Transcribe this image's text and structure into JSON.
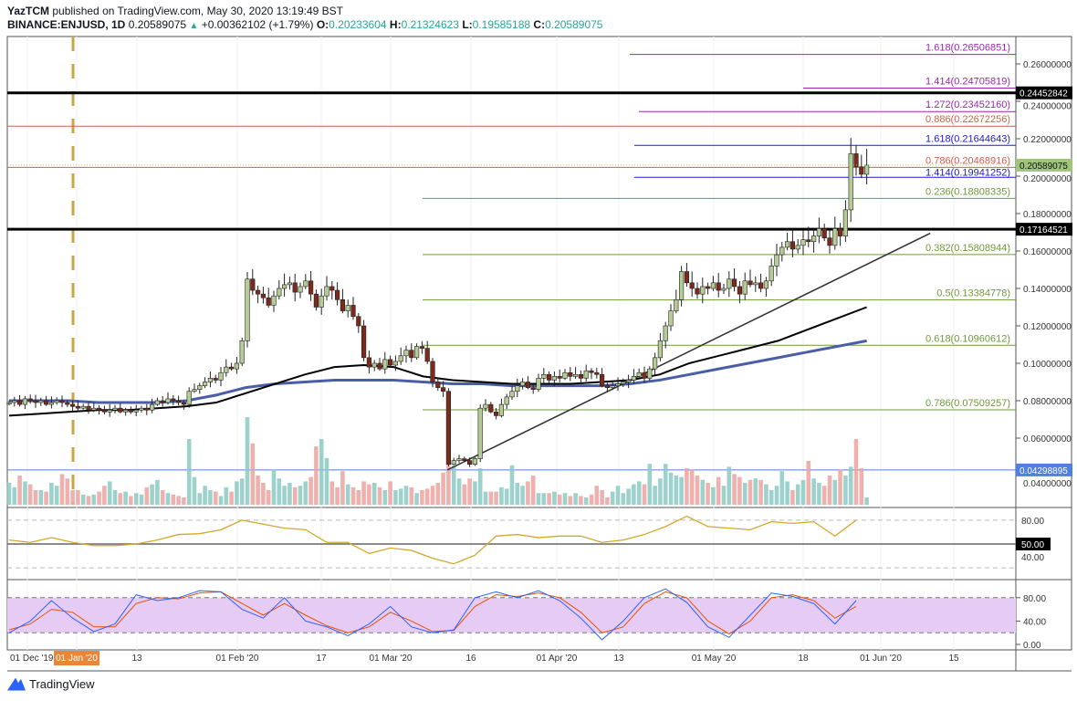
{
  "header": {
    "author": "YazTCM",
    "published": "published on TradingView.com, May 30, 2020 13:19:49 BST",
    "symbol": "BINANCE:ENJUSD, 1D",
    "last": "0.20589075",
    "change": "+0.00362102 (+1.79%)",
    "o_label": "O:",
    "o": "0.20233604",
    "h_label": "H:",
    "h": "0.21324623",
    "l_label": "L:",
    "l": "0.19585188",
    "c_label": "C:",
    "c": "0.20589075"
  },
  "footer": {
    "brand": "TradingView"
  },
  "colors": {
    "up": "#b5cc94",
    "down": "#7b2a1c",
    "ma_black": "#000000",
    "ma_blue": "#4a5ea8",
    "rsi": "#d4a72c",
    "stoch_k": "#2962ff",
    "stoch_d": "#e65100",
    "fib_ext": "#9c27b0",
    "fib_red": "#d0604a",
    "fib_blue": "#1a1ad0",
    "fib_green": "#6f9a3a"
  },
  "chart_data": {
    "type": "candlestick",
    "title": "",
    "price_axis": {
      "ylim": [
        0.03,
        0.27
      ],
      "ticks": [
        "0.26000000",
        "0.24000000",
        "0.22000000",
        "0.20000000",
        "0.18000000",
        "0.16000000",
        "0.14000000",
        "0.12000000",
        "0.10000000",
        "0.08000000",
        "0.06000000",
        "0.04000000"
      ]
    },
    "time_axis": {
      "ticks": [
        {
          "label": "01 Dec '19",
          "highlight": false
        },
        {
          "label": "01 Jan '20",
          "highlight": true
        },
        {
          "label": "13",
          "highlight": false
        },
        {
          "label": "01 Feb '20",
          "highlight": false
        },
        {
          "label": "17",
          "highlight": false
        },
        {
          "label": "01 Mar '20",
          "highlight": false
        },
        {
          "label": "16",
          "highlight": false
        },
        {
          "label": "01 Apr '20",
          "highlight": false
        },
        {
          "label": "13",
          "highlight": false
        },
        {
          "label": "01 May '20",
          "highlight": false
        },
        {
          "label": "18",
          "highlight": false
        },
        {
          "label": "01 Jun '20",
          "highlight": false
        },
        {
          "label": "15",
          "highlight": false
        }
      ]
    },
    "closes": [
      0.079,
      0.08,
      0.078,
      0.081,
      0.08,
      0.079,
      0.08,
      0.078,
      0.079,
      0.08,
      0.079,
      0.078,
      0.077,
      0.076,
      0.077,
      0.075,
      0.076,
      0.075,
      0.074,
      0.075,
      0.076,
      0.074,
      0.075,
      0.074,
      0.075,
      0.076,
      0.075,
      0.078,
      0.08,
      0.079,
      0.081,
      0.08,
      0.079,
      0.078,
      0.085,
      0.086,
      0.088,
      0.09,
      0.092,
      0.091,
      0.095,
      0.098,
      0.097,
      0.1,
      0.112,
      0.145,
      0.139,
      0.137,
      0.135,
      0.131,
      0.136,
      0.14,
      0.142,
      0.143,
      0.138,
      0.141,
      0.144,
      0.137,
      0.13,
      0.136,
      0.141,
      0.139,
      0.134,
      0.128,
      0.131,
      0.125,
      0.12,
      0.103,
      0.098,
      0.1,
      0.097,
      0.102,
      0.099,
      0.101,
      0.104,
      0.107,
      0.103,
      0.109,
      0.108,
      0.101,
      0.09,
      0.087,
      0.085,
      0.046,
      0.048,
      0.049,
      0.048,
      0.046,
      0.049,
      0.076,
      0.078,
      0.074,
      0.072,
      0.078,
      0.082,
      0.085,
      0.088,
      0.09,
      0.087,
      0.086,
      0.092,
      0.094,
      0.091,
      0.093,
      0.092,
      0.095,
      0.093,
      0.094,
      0.092,
      0.096,
      0.095,
      0.094,
      0.088,
      0.087,
      0.088,
      0.089,
      0.09,
      0.091,
      0.093,
      0.095,
      0.092,
      0.097,
      0.103,
      0.112,
      0.12,
      0.128,
      0.134,
      0.149,
      0.143,
      0.14,
      0.137,
      0.141,
      0.14,
      0.143,
      0.139,
      0.14,
      0.145,
      0.141,
      0.137,
      0.144,
      0.142,
      0.143,
      0.14,
      0.144,
      0.152,
      0.158,
      0.162,
      0.165,
      0.161,
      0.163,
      0.166,
      0.165,
      0.168,
      0.172,
      0.167,
      0.163,
      0.172,
      0.168,
      0.182,
      0.212,
      0.205,
      0.201,
      0.20589075
    ],
    "volumes": [
      1.5,
      1.2,
      2.0,
      1.6,
      1.4,
      1.0,
      1.0,
      0.9,
      1.5,
      1.3,
      2.1,
      1.8,
      1.0,
      1.0,
      0.7,
      0.6,
      0.7,
      0.9,
      1.3,
      1.6,
      1.0,
      0.8,
      0.9,
      0.6,
      0.8,
      0.7,
      1.2,
      1.4,
      1.7,
      1.0,
      0.8,
      0.7,
      0.6,
      0.5,
      4.5,
      1.9,
      0.8,
      1.3,
      1.0,
      0.9,
      0.6,
      1.2,
      0.9,
      1.6,
      1.8,
      6.0,
      4.2,
      2.0,
      1.5,
      1.0,
      2.4,
      1.8,
      1.3,
      1.5,
      1.2,
      1.3,
      1.6,
      1.9,
      4.0,
      4.5,
      3.2,
      1.6,
      1.2,
      2.3,
      1.4,
      1.2,
      1.0,
      1.6,
      1.4,
      1.5,
      1.2,
      1.0,
      1.6,
      1.0,
      1.1,
      1.3,
      1.2,
      0.8,
      1.0,
      1.1,
      1.3,
      1.5,
      2.2,
      4.5,
      2.7,
      1.8,
      1.4,
      1.8,
      1.6,
      2.5,
      0.9,
      0.9,
      0.9,
      1.2,
      1.1,
      2.7,
      1.5,
      1.3,
      1.6,
      2.0,
      0.8,
      0.8,
      0.8,
      0.9,
      0.7,
      0.8,
      0.6,
      0.8,
      0.6,
      0.5,
      0.7,
      1.3,
      1.0,
      0.5,
      0.9,
      1.3,
      0.8,
      1.1,
      1.4,
      1.6,
      1.4,
      2.8,
      1.3,
      1.8,
      2.8,
      2.2,
      2.0,
      1.9,
      2.5,
      2.4,
      2.0,
      1.7,
      1.5,
      1.2,
      1.9,
      1.3,
      2.6,
      2.1,
      1.9,
      1.5,
      1.7,
      1.8,
      1.7,
      1.4,
      1.0,
      1.3,
      2.3,
      1.6,
      1.0,
      1.4,
      1.7,
      3.0,
      1.8,
      1.5,
      1.3,
      2.0,
      1.7,
      2.4,
      2.0,
      2.6,
      4.5,
      2.5,
      0.5
    ],
    "ma_black": [
      0.072,
      0.073,
      0.074,
      0.075,
      0.075,
      0.076,
      0.077,
      0.079,
      0.084,
      0.089,
      0.094,
      0.098,
      0.099,
      0.098,
      0.093,
      0.091,
      0.09,
      0.089,
      0.089,
      0.089,
      0.09,
      0.091,
      0.094,
      0.1,
      0.104,
      0.108,
      0.112,
      0.118,
      0.124,
      0.13
    ],
    "ma_blue": [
      0.08,
      0.08,
      0.08,
      0.079,
      0.079,
      0.079,
      0.08,
      0.083,
      0.087,
      0.089,
      0.09,
      0.091,
      0.091,
      0.091,
      0.09,
      0.089,
      0.089,
      0.088,
      0.088,
      0.088,
      0.088,
      0.089,
      0.091,
      0.094,
      0.097,
      0.1,
      0.103,
      0.106,
      0.109,
      0.112
    ],
    "horizontal_levels": [
      {
        "price": "0.24452842",
        "style": "black"
      },
      {
        "price": "0.17164521",
        "style": "black"
      },
      {
        "price": "0.04298895",
        "style": "blue"
      }
    ],
    "last_price": "0.20589075",
    "fib_levels": [
      {
        "label": "1.618(0.26506851)",
        "price": 0.26506851,
        "group": "ext"
      },
      {
        "label": "1.414(0.24705819)",
        "price": 0.24705819,
        "group": "ext"
      },
      {
        "label": "1.272(0.23452160)",
        "price": 0.2345216,
        "group": "ext"
      },
      {
        "label": "0.886(0.22672256)",
        "price": 0.22672256,
        "group": "red"
      },
      {
        "label": "1.618(0.21644643)",
        "price": 0.21644643,
        "group": "blue"
      },
      {
        "label": "0.786(0.20468916)",
        "price": 0.20468916,
        "group": "red"
      },
      {
        "label": "1.414(0.19941252)",
        "price": 0.19941252,
        "group": "blue"
      },
      {
        "label": "0.236(0.18808335)",
        "price": 0.18808335,
        "group": "green"
      },
      {
        "label": "0.382(0.15808944)",
        "price": 0.15808944,
        "group": "green"
      },
      {
        "label": "0.5(0.13384778)",
        "price": 0.13384778,
        "group": "green"
      },
      {
        "label": "0.618(0.10960612)",
        "price": 0.10960612,
        "group": "green"
      },
      {
        "label": "0.786(0.07509257)",
        "price": 0.07509257,
        "group": "green"
      }
    ],
    "trendline": {
      "from_price": 0.043,
      "to_price": 0.1695
    },
    "rsi": {
      "ticks": [
        "80.00",
        "50.00",
        "40.00"
      ],
      "marker": "50.00",
      "values": [
        55,
        52,
        58,
        52,
        48,
        48,
        50,
        55,
        62,
        63,
        68,
        80,
        75,
        70,
        68,
        52,
        52,
        38,
        45,
        42,
        32,
        25,
        36,
        60,
        62,
        58,
        60,
        60,
        52,
        55,
        62,
        72,
        85,
        72,
        70,
        68,
        78,
        76,
        78,
        60,
        80
      ]
    },
    "stoch_rsi": {
      "ticks": [
        "80.00",
        "40.00",
        "0.00"
      ],
      "k": [
        20,
        40,
        75,
        45,
        22,
        35,
        85,
        75,
        80,
        92,
        90,
        60,
        45,
        80,
        40,
        30,
        15,
        35,
        65,
        30,
        20,
        25,
        80,
        90,
        80,
        92,
        75,
        45,
        8,
        40,
        80,
        95,
        72,
        30,
        12,
        50,
        88,
        82,
        70,
        35,
        75
      ],
      "d": [
        25,
        35,
        60,
        55,
        30,
        30,
        70,
        80,
        78,
        88,
        90,
        70,
        50,
        70,
        50,
        32,
        20,
        30,
        55,
        40,
        22,
        24,
        65,
        85,
        82,
        88,
        80,
        55,
        20,
        30,
        70,
        90,
        80,
        40,
        18,
        40,
        80,
        85,
        75,
        45,
        65
      ]
    }
  }
}
